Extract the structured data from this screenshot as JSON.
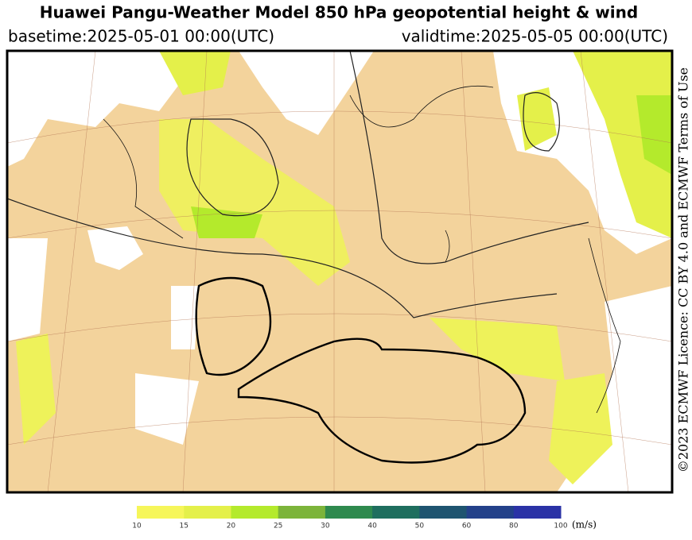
{
  "header": {
    "title": "Huawei Pangu-Weather Model 850 hPa geopotential height & wind",
    "basetime": "basetime:2025-05-01 00:00(UTC)",
    "validtime": "validtime:2025-05-05 00:00(UTC)"
  },
  "licence": "©2023 ECMWF Licence: CC BY 4.0 and ECMWF Terms of Use",
  "colorbar": {
    "ticks": [
      10,
      15,
      20,
      25,
      30,
      40,
      50,
      60,
      80,
      100
    ],
    "colors": [
      "#f6f65a",
      "#e4f04a",
      "#b4ea2c",
      "#7cb43a",
      "#2e8a4e",
      "#1e6e5e",
      "#1e5470",
      "#23418a",
      "#2a32a6"
    ],
    "unit": "(m/s)"
  }
}
